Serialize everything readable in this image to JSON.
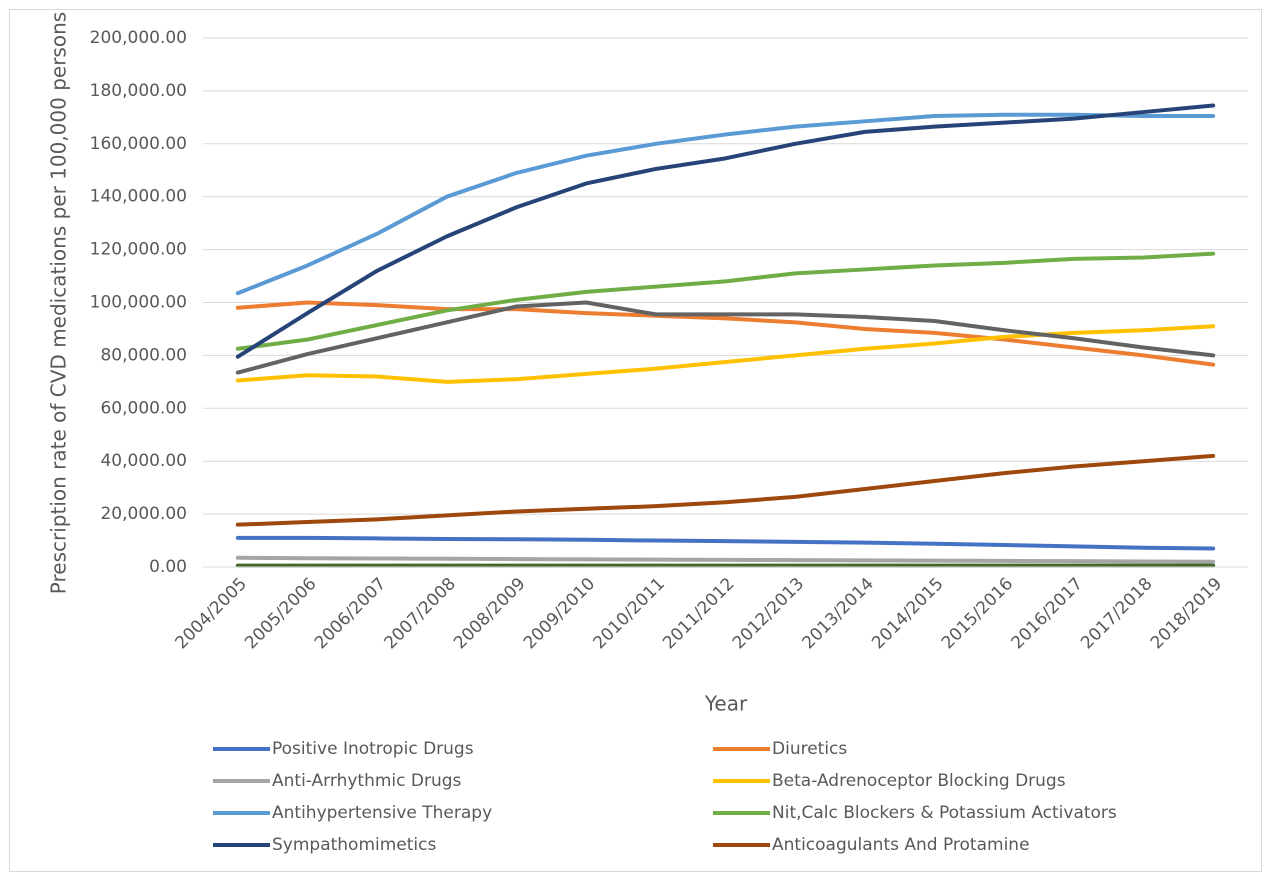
{
  "chart_data": {
    "type": "line",
    "x_label": "Year",
    "y_label": "Prescription rate of CVD medications per 100,000 persons",
    "categories": [
      "2004/2005",
      "2005/2006",
      "2006/2007",
      "2007/2008",
      "2008/2009",
      "2009/2010",
      "2010/2011",
      "2011/2012",
      "2012/2013",
      "2013/2014",
      "2014/2015",
      "2015/2016",
      "2016/2017",
      "2017/2018",
      "2018/2019"
    ],
    "ylim": [
      0,
      200000
    ],
    "yticks": [
      {
        "value": 0,
        "label": "0.00"
      },
      {
        "value": 20000,
        "label": "20,000.00"
      },
      {
        "value": 40000,
        "label": "40,000.00"
      },
      {
        "value": 60000,
        "label": "60,000.00"
      },
      {
        "value": 80000,
        "label": "80,000.00"
      },
      {
        "value": 100000,
        "label": "100,000.00"
      },
      {
        "value": 120000,
        "label": "120,000.00"
      },
      {
        "value": 140000,
        "label": "140,000.00"
      },
      {
        "value": 160000,
        "label": "160,000.00"
      },
      {
        "value": 180000,
        "label": "180,000.00"
      },
      {
        "value": 200000,
        "label": "200,000.00"
      }
    ],
    "grid": true,
    "legend": "bottom",
    "series": [
      {
        "name": "Positive Inotropic Drugs",
        "color": "#4472c4",
        "values": [
          11000,
          11000,
          10800,
          10600,
          10500,
          10300,
          10000,
          9800,
          9500,
          9200,
          8800,
          8300,
          7800,
          7300,
          7000
        ]
      },
      {
        "name": "Diuretics",
        "color": "#ed7d31",
        "values": [
          98000,
          100000,
          99000,
          97500,
          97500,
          96000,
          95000,
          94000,
          92500,
          90000,
          88500,
          86000,
          83000,
          80000,
          76500
        ]
      },
      {
        "name": "Anti-Arrhythmic Drugs",
        "color": "#a5a5a5",
        "values": [
          3500,
          3300,
          3200,
          3100,
          3000,
          2900,
          2800,
          2700,
          2600,
          2500,
          2400,
          2300,
          2200,
          2100,
          2000
        ]
      },
      {
        "name": "Beta-Adrenoceptor Blocking Drugs",
        "color": "#ffc000",
        "values": [
          70500,
          72500,
          72000,
          70000,
          71000,
          73000,
          75000,
          77500,
          80000,
          82500,
          84500,
          87000,
          88500,
          89500,
          91000
        ]
      },
      {
        "name": "Antihypertensive Therapy",
        "color": "#5b9bd5",
        "values": [
          103500,
          114000,
          126000,
          140000,
          149000,
          155500,
          160000,
          163500,
          166500,
          168500,
          170500,
          171000,
          171000,
          170500,
          170500
        ]
      },
      {
        "name": "Nit,Calc Blockers & Potassium Activators",
        "color": "#70ad47",
        "values": [
          82500,
          86000,
          91500,
          97000,
          101000,
          104000,
          106000,
          108000,
          111000,
          112500,
          114000,
          115000,
          116500,
          117000,
          118500
        ]
      },
      {
        "name": "Sympathomimetics",
        "color": "#264478",
        "values": [
          79500,
          96000,
          112000,
          125000,
          136000,
          145000,
          150500,
          154500,
          160000,
          164500,
          166500,
          168000,
          169500,
          172000,
          174500
        ]
      },
      {
        "name": "Anticoagulants And Protamine",
        "color": "#9e480e",
        "values": [
          16000,
          17000,
          18000,
          19500,
          21000,
          22000,
          23000,
          24500,
          26500,
          29500,
          32500,
          35500,
          38000,
          40000,
          42000
        ]
      },
      {
        "color": "#636363",
        "values": [
          73500,
          80500,
          86500,
          92500,
          98500,
          100000,
          95500,
          95500,
          95500,
          94500,
          93000,
          89500,
          86500,
          83000,
          80000
        ]
      },
      {
        "color": "#43682b",
        "values": [
          500,
          500,
          500,
          500,
          500,
          500,
          500,
          500,
          500,
          500,
          500,
          500,
          500,
          500,
          500
        ]
      }
    ]
  }
}
